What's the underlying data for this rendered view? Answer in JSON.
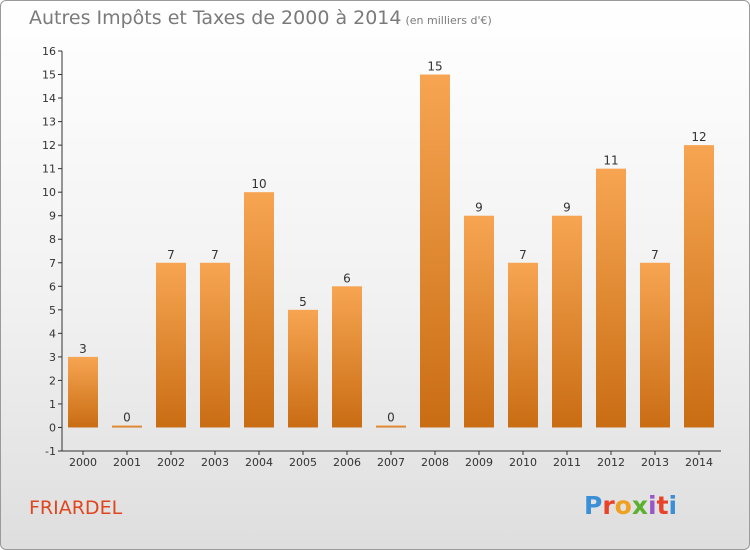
{
  "header": {
    "title": "Autres Impôts et Taxes de 2000 à 2014",
    "unit": "(en milliers d'€)"
  },
  "footer": {
    "place": "FRIARDEL",
    "logo": "Proxiti"
  },
  "colors": {
    "bar_light": "#f7a552",
    "bar_dark": "#c96d14",
    "place": "#e0461e"
  },
  "chart_data": {
    "type": "bar",
    "title": "Autres Impôts et Taxes de 2000 à 2014",
    "xlabel": "",
    "ylabel": "",
    "categories": [
      "2000",
      "2001",
      "2002",
      "2003",
      "2004",
      "2005",
      "2006",
      "2007",
      "2008",
      "2009",
      "2010",
      "2011",
      "2012",
      "2013",
      "2014"
    ],
    "values": [
      3,
      0,
      7,
      7,
      10,
      5,
      6,
      0,
      15,
      9,
      7,
      9,
      11,
      7,
      12
    ],
    "ylim": [
      -1,
      16
    ],
    "yticks": [
      -1,
      0,
      1,
      2,
      3,
      4,
      5,
      6,
      7,
      8,
      9,
      10,
      11,
      12,
      13,
      14,
      15,
      16
    ],
    "grid": false,
    "legend": "none"
  }
}
